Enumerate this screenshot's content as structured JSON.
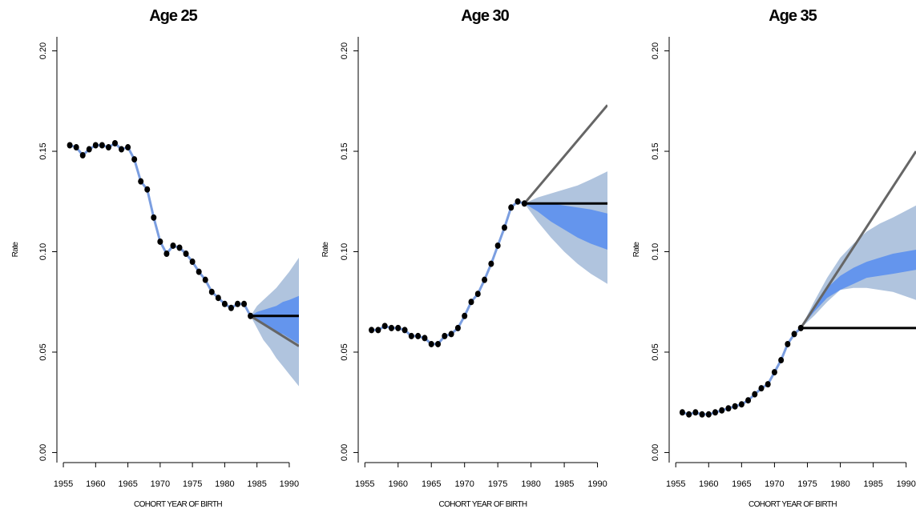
{
  "colors": {
    "outer_band": "#b0c4de",
    "inner_band": "#6495ed",
    "smooth_line": "#7b9ee0",
    "points": "#000000",
    "flat_line": "#000000",
    "trend_line": "#666666"
  },
  "chart_data": [
    {
      "type": "line",
      "title": "Age 25",
      "xlabel": "COHORT YEAR OF BIRTH",
      "ylabel": "Rate",
      "xlim": [
        1954,
        1991.5
      ],
      "ylim": [
        -0.005,
        0.207
      ],
      "xticks": [
        "1955",
        "1960",
        "1965",
        "1970",
        "1975",
        "1980",
        "1985",
        "1990"
      ],
      "yticks": [
        "0.00",
        "0.05",
        "0.10",
        "0.15",
        "0.20"
      ],
      "observed": {
        "x": [
          1956,
          1957,
          1958,
          1959,
          1960,
          1961,
          1962,
          1963,
          1964,
          1965,
          1966,
          1967,
          1968,
          1969,
          1970,
          1971,
          1972,
          1973,
          1974,
          1975,
          1976,
          1977,
          1978,
          1979,
          1980,
          1981,
          1982,
          1983,
          1984
        ],
        "y": [
          0.153,
          0.152,
          0.148,
          0.151,
          0.153,
          0.153,
          0.152,
          0.154,
          0.151,
          0.152,
          0.146,
          0.135,
          0.131,
          0.117,
          0.105,
          0.099,
          0.103,
          0.102,
          0.099,
          0.095,
          0.09,
          0.086,
          0.08,
          0.077,
          0.074,
          0.072,
          0.074,
          0.074,
          0.068
        ]
      },
      "forecast": {
        "x": [
          1984,
          1985,
          1986,
          1987,
          1988,
          1989,
          1990,
          1991.5
        ],
        "outer_upper": [
          0.068,
          0.073,
          0.076,
          0.079,
          0.082,
          0.086,
          0.09,
          0.097
        ],
        "inner_upper": [
          0.068,
          0.07,
          0.071,
          0.072,
          0.073,
          0.075,
          0.076,
          0.078
        ],
        "inner_lower": [
          0.068,
          0.066,
          0.064,
          0.062,
          0.06,
          0.059,
          0.057,
          0.054
        ],
        "outer_lower": [
          0.068,
          0.062,
          0.056,
          0.052,
          0.047,
          0.043,
          0.039,
          0.033
        ],
        "flat_level": 0.068,
        "trend_end": [
          1991.5,
          0.053
        ]
      }
    },
    {
      "type": "line",
      "title": "Age 30",
      "xlabel": "COHORT YEAR OF BIRTH",
      "ylabel": "Rate",
      "xlim": [
        1954,
        1991.5
      ],
      "ylim": [
        -0.005,
        0.207
      ],
      "xticks": [
        "1955",
        "1960",
        "1965",
        "1970",
        "1975",
        "1980",
        "1985",
        "1990"
      ],
      "yticks": [
        "0.00",
        "0.05",
        "0.10",
        "0.15",
        "0.20"
      ],
      "observed": {
        "x": [
          1956,
          1957,
          1958,
          1959,
          1960,
          1961,
          1962,
          1963,
          1964,
          1965,
          1966,
          1967,
          1968,
          1969,
          1970,
          1971,
          1972,
          1973,
          1974,
          1975,
          1976,
          1977,
          1978,
          1979
        ],
        "y": [
          0.061,
          0.061,
          0.063,
          0.062,
          0.062,
          0.061,
          0.058,
          0.058,
          0.057,
          0.054,
          0.054,
          0.058,
          0.059,
          0.062,
          0.068,
          0.075,
          0.079,
          0.086,
          0.094,
          0.103,
          0.112,
          0.122,
          0.125,
          0.124
        ]
      },
      "forecast": {
        "x": [
          1979,
          1981,
          1983,
          1985,
          1987,
          1989,
          1991.5
        ],
        "outer_upper": [
          0.124,
          0.127,
          0.129,
          0.131,
          0.133,
          0.136,
          0.14
        ],
        "inner_upper": [
          0.124,
          0.124,
          0.124,
          0.123,
          0.122,
          0.121,
          0.119
        ],
        "inner_lower": [
          0.124,
          0.12,
          0.115,
          0.111,
          0.107,
          0.104,
          0.101
        ],
        "outer_lower": [
          0.124,
          0.115,
          0.107,
          0.1,
          0.094,
          0.089,
          0.084
        ],
        "flat_level": 0.124,
        "trend_end": [
          1991.5,
          0.173
        ]
      }
    },
    {
      "type": "line",
      "title": "Age 35",
      "xlabel": "COHORT YEAR OF BIRTH",
      "ylabel": "Rate",
      "xlim": [
        1954,
        1991.5
      ],
      "ylim": [
        -0.005,
        0.207
      ],
      "xticks": [
        "1955",
        "1960",
        "1965",
        "1970",
        "1975",
        "1980",
        "1985",
        "1990"
      ],
      "yticks": [
        "0.00",
        "0.05",
        "0.10",
        "0.15",
        "0.20"
      ],
      "observed": {
        "x": [
          1956,
          1957,
          1958,
          1959,
          1960,
          1961,
          1962,
          1963,
          1964,
          1965,
          1966,
          1967,
          1968,
          1969,
          1970,
          1971,
          1972,
          1973,
          1974
        ],
        "y": [
          0.02,
          0.019,
          0.02,
          0.019,
          0.019,
          0.02,
          0.021,
          0.022,
          0.023,
          0.024,
          0.026,
          0.029,
          0.032,
          0.034,
          0.04,
          0.046,
          0.054,
          0.059,
          0.062
        ]
      },
      "forecast": {
        "x": [
          1974,
          1976,
          1978,
          1980,
          1982,
          1984,
          1986,
          1988,
          1991.5
        ],
        "outer_upper": [
          0.062,
          0.075,
          0.087,
          0.097,
          0.104,
          0.11,
          0.114,
          0.117,
          0.123
        ],
        "inner_upper": [
          0.062,
          0.073,
          0.082,
          0.088,
          0.092,
          0.095,
          0.097,
          0.099,
          0.101
        ],
        "inner_lower": [
          0.062,
          0.07,
          0.077,
          0.081,
          0.084,
          0.087,
          0.088,
          0.089,
          0.091
        ],
        "outer_lower": [
          0.062,
          0.068,
          0.075,
          0.081,
          0.082,
          0.082,
          0.081,
          0.08,
          0.076
        ],
        "flat_level": 0.062,
        "trend_end": [
          1991.5,
          0.15
        ]
      }
    }
  ]
}
